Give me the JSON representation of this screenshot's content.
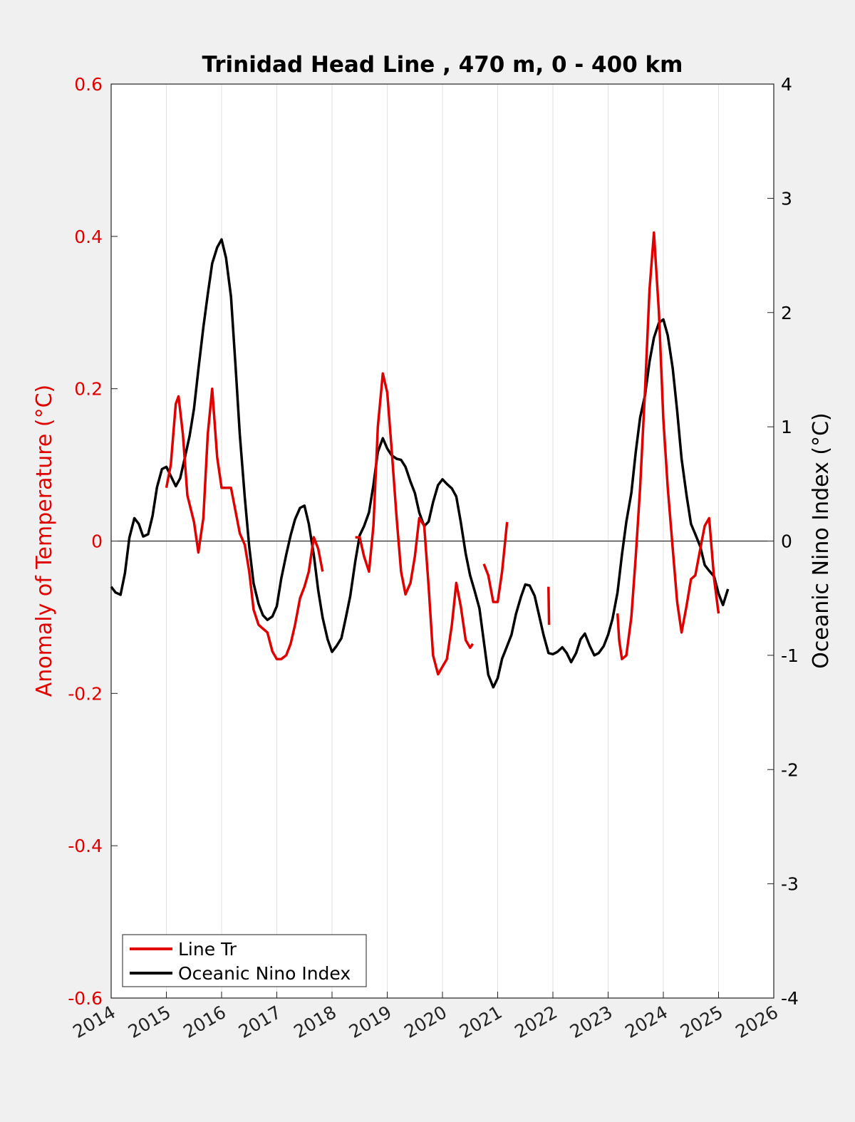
{
  "chart_data": {
    "type": "line",
    "title": "Trinidad Head Line , 470 m, 0 - 400 km",
    "xlabel": "",
    "ylabel_left": "Anomaly of Temperature (°C)",
    "ylabel_right": "Oceanic Nino Index (°C)",
    "xlim": [
      2014,
      2026
    ],
    "ylim_left": [
      -0.6,
      0.6
    ],
    "ylim_right": [
      -4,
      4
    ],
    "x_ticks": [
      "2014",
      "2015",
      "2016",
      "2017",
      "2018",
      "2019",
      "2020",
      "2021",
      "2022",
      "2023",
      "2024",
      "2025",
      "2026"
    ],
    "y_ticks_left": [
      "0.6",
      "0.4",
      "0.2",
      "0",
      "-0.2",
      "-0.4",
      "-0.6"
    ],
    "y_ticks_right": [
      "4",
      "3",
      "2",
      "1",
      "0",
      "-1",
      "-2",
      "-3",
      "-4"
    ],
    "grid": "vertical",
    "zero_line": true,
    "legend_position": "bottom-left",
    "colors": {
      "line_tr": "#e00000",
      "oni": "#000000",
      "axis_left": "#e00000",
      "axis_right": "#000000"
    },
    "series": [
      {
        "name": "Line Tr",
        "axis": "left",
        "color": "#e00000",
        "segments": [
          [
            [
              2015.0,
              0.07
            ],
            [
              2015.08,
              0.1
            ],
            [
              2015.17,
              0.18
            ],
            [
              2015.22,
              0.19
            ],
            [
              2015.3,
              0.14
            ],
            [
              2015.38,
              0.06
            ],
            [
              2015.5,
              0.025
            ],
            [
              2015.58,
              -0.015
            ],
            [
              2015.67,
              0.03
            ],
            [
              2015.75,
              0.14
            ],
            [
              2015.83,
              0.2
            ],
            [
              2015.92,
              0.11
            ],
            [
              2016.0,
              0.07
            ],
            [
              2016.08,
              0.07
            ],
            [
              2016.17,
              0.07
            ],
            [
              2016.25,
              0.04
            ],
            [
              2016.33,
              0.01
            ],
            [
              2016.42,
              -0.005
            ],
            [
              2016.5,
              -0.04
            ],
            [
              2016.58,
              -0.09
            ],
            [
              2016.67,
              -0.11
            ],
            [
              2016.75,
              -0.115
            ],
            [
              2016.83,
              -0.12
            ],
            [
              2016.92,
              -0.145
            ],
            [
              2017.0,
              -0.155
            ],
            [
              2017.08,
              -0.155
            ],
            [
              2017.17,
              -0.15
            ],
            [
              2017.25,
              -0.135
            ],
            [
              2017.33,
              -0.11
            ],
            [
              2017.42,
              -0.075
            ],
            [
              2017.5,
              -0.06
            ],
            [
              2017.58,
              -0.04
            ],
            [
              2017.67,
              0.005
            ],
            [
              2017.75,
              -0.01
            ],
            [
              2017.83,
              -0.04
            ]
          ],
          [
            [
              2018.42,
              0.005
            ],
            [
              2018.5,
              0.005
            ],
            [
              2018.58,
              -0.02
            ],
            [
              2018.67,
              -0.04
            ],
            [
              2018.75,
              0.02
            ],
            [
              2018.83,
              0.15
            ],
            [
              2018.92,
              0.22
            ],
            [
              2019.0,
              0.195
            ],
            [
              2019.08,
              0.12
            ],
            [
              2019.17,
              0.03
            ],
            [
              2019.25,
              -0.04
            ],
            [
              2019.33,
              -0.07
            ],
            [
              2019.42,
              -0.055
            ],
            [
              2019.5,
              -0.02
            ],
            [
              2019.58,
              0.03
            ],
            [
              2019.67,
              0.02
            ],
            [
              2019.75,
              -0.06
            ],
            [
              2019.83,
              -0.15
            ],
            [
              2019.92,
              -0.175
            ],
            [
              2020.0,
              -0.165
            ],
            [
              2020.08,
              -0.155
            ],
            [
              2020.17,
              -0.11
            ],
            [
              2020.25,
              -0.055
            ],
            [
              2020.33,
              -0.085
            ],
            [
              2020.42,
              -0.13
            ],
            [
              2020.5,
              -0.14
            ],
            [
              2020.55,
              -0.135
            ]
          ],
          [
            [
              2020.75,
              -0.03
            ],
            [
              2020.83,
              -0.045
            ],
            [
              2020.92,
              -0.08
            ],
            [
              2021.0,
              -0.08
            ],
            [
              2021.08,
              -0.04
            ],
            [
              2021.17,
              0.025
            ]
          ],
          [
            [
              2021.92,
              -0.06
            ],
            [
              2021.93,
              -0.11
            ]
          ],
          [
            [
              2023.17,
              -0.095
            ],
            [
              2023.2,
              -0.13
            ],
            [
              2023.25,
              -0.155
            ],
            [
              2023.33,
              -0.15
            ],
            [
              2023.42,
              -0.1
            ],
            [
              2023.5,
              -0.02
            ],
            [
              2023.58,
              0.07
            ],
            [
              2023.67,
              0.2
            ],
            [
              2023.75,
              0.33
            ],
            [
              2023.83,
              0.405
            ],
            [
              2023.92,
              0.3
            ],
            [
              2024.0,
              0.16
            ],
            [
              2024.08,
              0.07
            ],
            [
              2024.17,
              -0.01
            ],
            [
              2024.25,
              -0.08
            ],
            [
              2024.33,
              -0.12
            ],
            [
              2024.42,
              -0.085
            ],
            [
              2024.5,
              -0.05
            ],
            [
              2024.58,
              -0.045
            ],
            [
              2024.67,
              -0.01
            ],
            [
              2024.75,
              0.02
            ],
            [
              2024.83,
              0.03
            ],
            [
              2024.92,
              -0.05
            ],
            [
              2025.0,
              -0.095
            ]
          ]
        ]
      },
      {
        "name": "Oceanic Nino Index",
        "axis": "right",
        "color": "#000000",
        "segments": [
          [
            [
              2014.0,
              -0.4
            ],
            [
              2014.08,
              -0.45
            ],
            [
              2014.17,
              -0.47
            ],
            [
              2014.25,
              -0.28
            ],
            [
              2014.33,
              0.03
            ],
            [
              2014.42,
              0.2
            ],
            [
              2014.5,
              0.15
            ],
            [
              2014.58,
              0.04
            ],
            [
              2014.67,
              0.06
            ],
            [
              2014.75,
              0.22
            ],
            [
              2014.83,
              0.47
            ],
            [
              2014.92,
              0.63
            ],
            [
              2015.0,
              0.65
            ],
            [
              2015.08,
              0.57
            ],
            [
              2015.17,
              0.48
            ],
            [
              2015.25,
              0.55
            ],
            [
              2015.33,
              0.72
            ],
            [
              2015.42,
              0.92
            ],
            [
              2015.5,
              1.16
            ],
            [
              2015.58,
              1.5
            ],
            [
              2015.67,
              1.87
            ],
            [
              2015.75,
              2.16
            ],
            [
              2015.83,
              2.43
            ],
            [
              2015.92,
              2.57
            ],
            [
              2016.0,
              2.64
            ],
            [
              2016.08,
              2.48
            ],
            [
              2016.17,
              2.14
            ],
            [
              2016.25,
              1.55
            ],
            [
              2016.33,
              0.93
            ],
            [
              2016.42,
              0.38
            ],
            [
              2016.5,
              -0.05
            ],
            [
              2016.58,
              -0.37
            ],
            [
              2016.67,
              -0.55
            ],
            [
              2016.75,
              -0.65
            ],
            [
              2016.83,
              -0.69
            ],
            [
              2016.92,
              -0.66
            ],
            [
              2017.0,
              -0.57
            ],
            [
              2017.08,
              -0.33
            ],
            [
              2017.17,
              -0.12
            ],
            [
              2017.25,
              0.05
            ],
            [
              2017.33,
              0.19
            ],
            [
              2017.42,
              0.29
            ],
            [
              2017.5,
              0.31
            ],
            [
              2017.58,
              0.15
            ],
            [
              2017.67,
              -0.12
            ],
            [
              2017.75,
              -0.43
            ],
            [
              2017.83,
              -0.67
            ],
            [
              2017.92,
              -0.86
            ],
            [
              2018.0,
              -0.97
            ],
            [
              2018.08,
              -0.92
            ],
            [
              2018.17,
              -0.85
            ],
            [
              2018.25,
              -0.67
            ],
            [
              2018.33,
              -0.48
            ],
            [
              2018.42,
              -0.18
            ],
            [
              2018.5,
              0.05
            ],
            [
              2018.58,
              0.13
            ],
            [
              2018.67,
              0.25
            ],
            [
              2018.75,
              0.49
            ],
            [
              2018.83,
              0.78
            ],
            [
              2018.92,
              0.9
            ],
            [
              2019.0,
              0.81
            ],
            [
              2019.08,
              0.75
            ],
            [
              2019.17,
              0.72
            ],
            [
              2019.25,
              0.71
            ],
            [
              2019.33,
              0.65
            ],
            [
              2019.42,
              0.52
            ],
            [
              2019.5,
              0.42
            ],
            [
              2019.58,
              0.25
            ],
            [
              2019.67,
              0.13
            ],
            [
              2019.75,
              0.17
            ],
            [
              2019.83,
              0.34
            ],
            [
              2019.92,
              0.49
            ],
            [
              2020.0,
              0.54
            ],
            [
              2020.08,
              0.5
            ],
            [
              2020.17,
              0.46
            ],
            [
              2020.25,
              0.39
            ],
            [
              2020.33,
              0.17
            ],
            [
              2020.42,
              -0.11
            ],
            [
              2020.5,
              -0.3
            ],
            [
              2020.58,
              -0.43
            ],
            [
              2020.67,
              -0.59
            ],
            [
              2020.75,
              -0.88
            ],
            [
              2020.83,
              -1.17
            ],
            [
              2020.92,
              -1.28
            ],
            [
              2021.0,
              -1.2
            ],
            [
              2021.08,
              -1.03
            ],
            [
              2021.17,
              -0.92
            ],
            [
              2021.25,
              -0.82
            ],
            [
              2021.33,
              -0.64
            ],
            [
              2021.42,
              -0.49
            ],
            [
              2021.5,
              -0.38
            ],
            [
              2021.58,
              -0.39
            ],
            [
              2021.67,
              -0.48
            ],
            [
              2021.75,
              -0.65
            ],
            [
              2021.83,
              -0.82
            ],
            [
              2021.92,
              -0.98
            ],
            [
              2022.0,
              -0.99
            ],
            [
              2022.08,
              -0.97
            ],
            [
              2022.17,
              -0.93
            ],
            [
              2022.25,
              -0.98
            ],
            [
              2022.33,
              -1.06
            ],
            [
              2022.42,
              -0.98
            ],
            [
              2022.5,
              -0.86
            ],
            [
              2022.58,
              -0.81
            ],
            [
              2022.67,
              -0.92
            ],
            [
              2022.75,
              -1.0
            ],
            [
              2022.83,
              -0.98
            ],
            [
              2022.92,
              -0.92
            ],
            [
              2023.0,
              -0.82
            ],
            [
              2023.08,
              -0.68
            ],
            [
              2023.17,
              -0.45
            ],
            [
              2023.25,
              -0.12
            ],
            [
              2023.33,
              0.17
            ],
            [
              2023.42,
              0.42
            ],
            [
              2023.5,
              0.78
            ],
            [
              2023.58,
              1.08
            ],
            [
              2023.67,
              1.28
            ],
            [
              2023.75,
              1.57
            ],
            [
              2023.83,
              1.78
            ],
            [
              2023.92,
              1.91
            ],
            [
              2024.0,
              1.94
            ],
            [
              2024.08,
              1.8
            ],
            [
              2024.17,
              1.51
            ],
            [
              2024.25,
              1.14
            ],
            [
              2024.33,
              0.72
            ],
            [
              2024.42,
              0.4
            ],
            [
              2024.5,
              0.15
            ],
            [
              2024.58,
              0.06
            ],
            [
              2024.67,
              -0.05
            ],
            [
              2024.75,
              -0.21
            ],
            [
              2024.83,
              -0.26
            ],
            [
              2024.92,
              -0.31
            ],
            [
              2025.0,
              -0.46
            ],
            [
              2025.08,
              -0.56
            ],
            [
              2025.17,
              -0.42
            ]
          ]
        ]
      }
    ]
  }
}
